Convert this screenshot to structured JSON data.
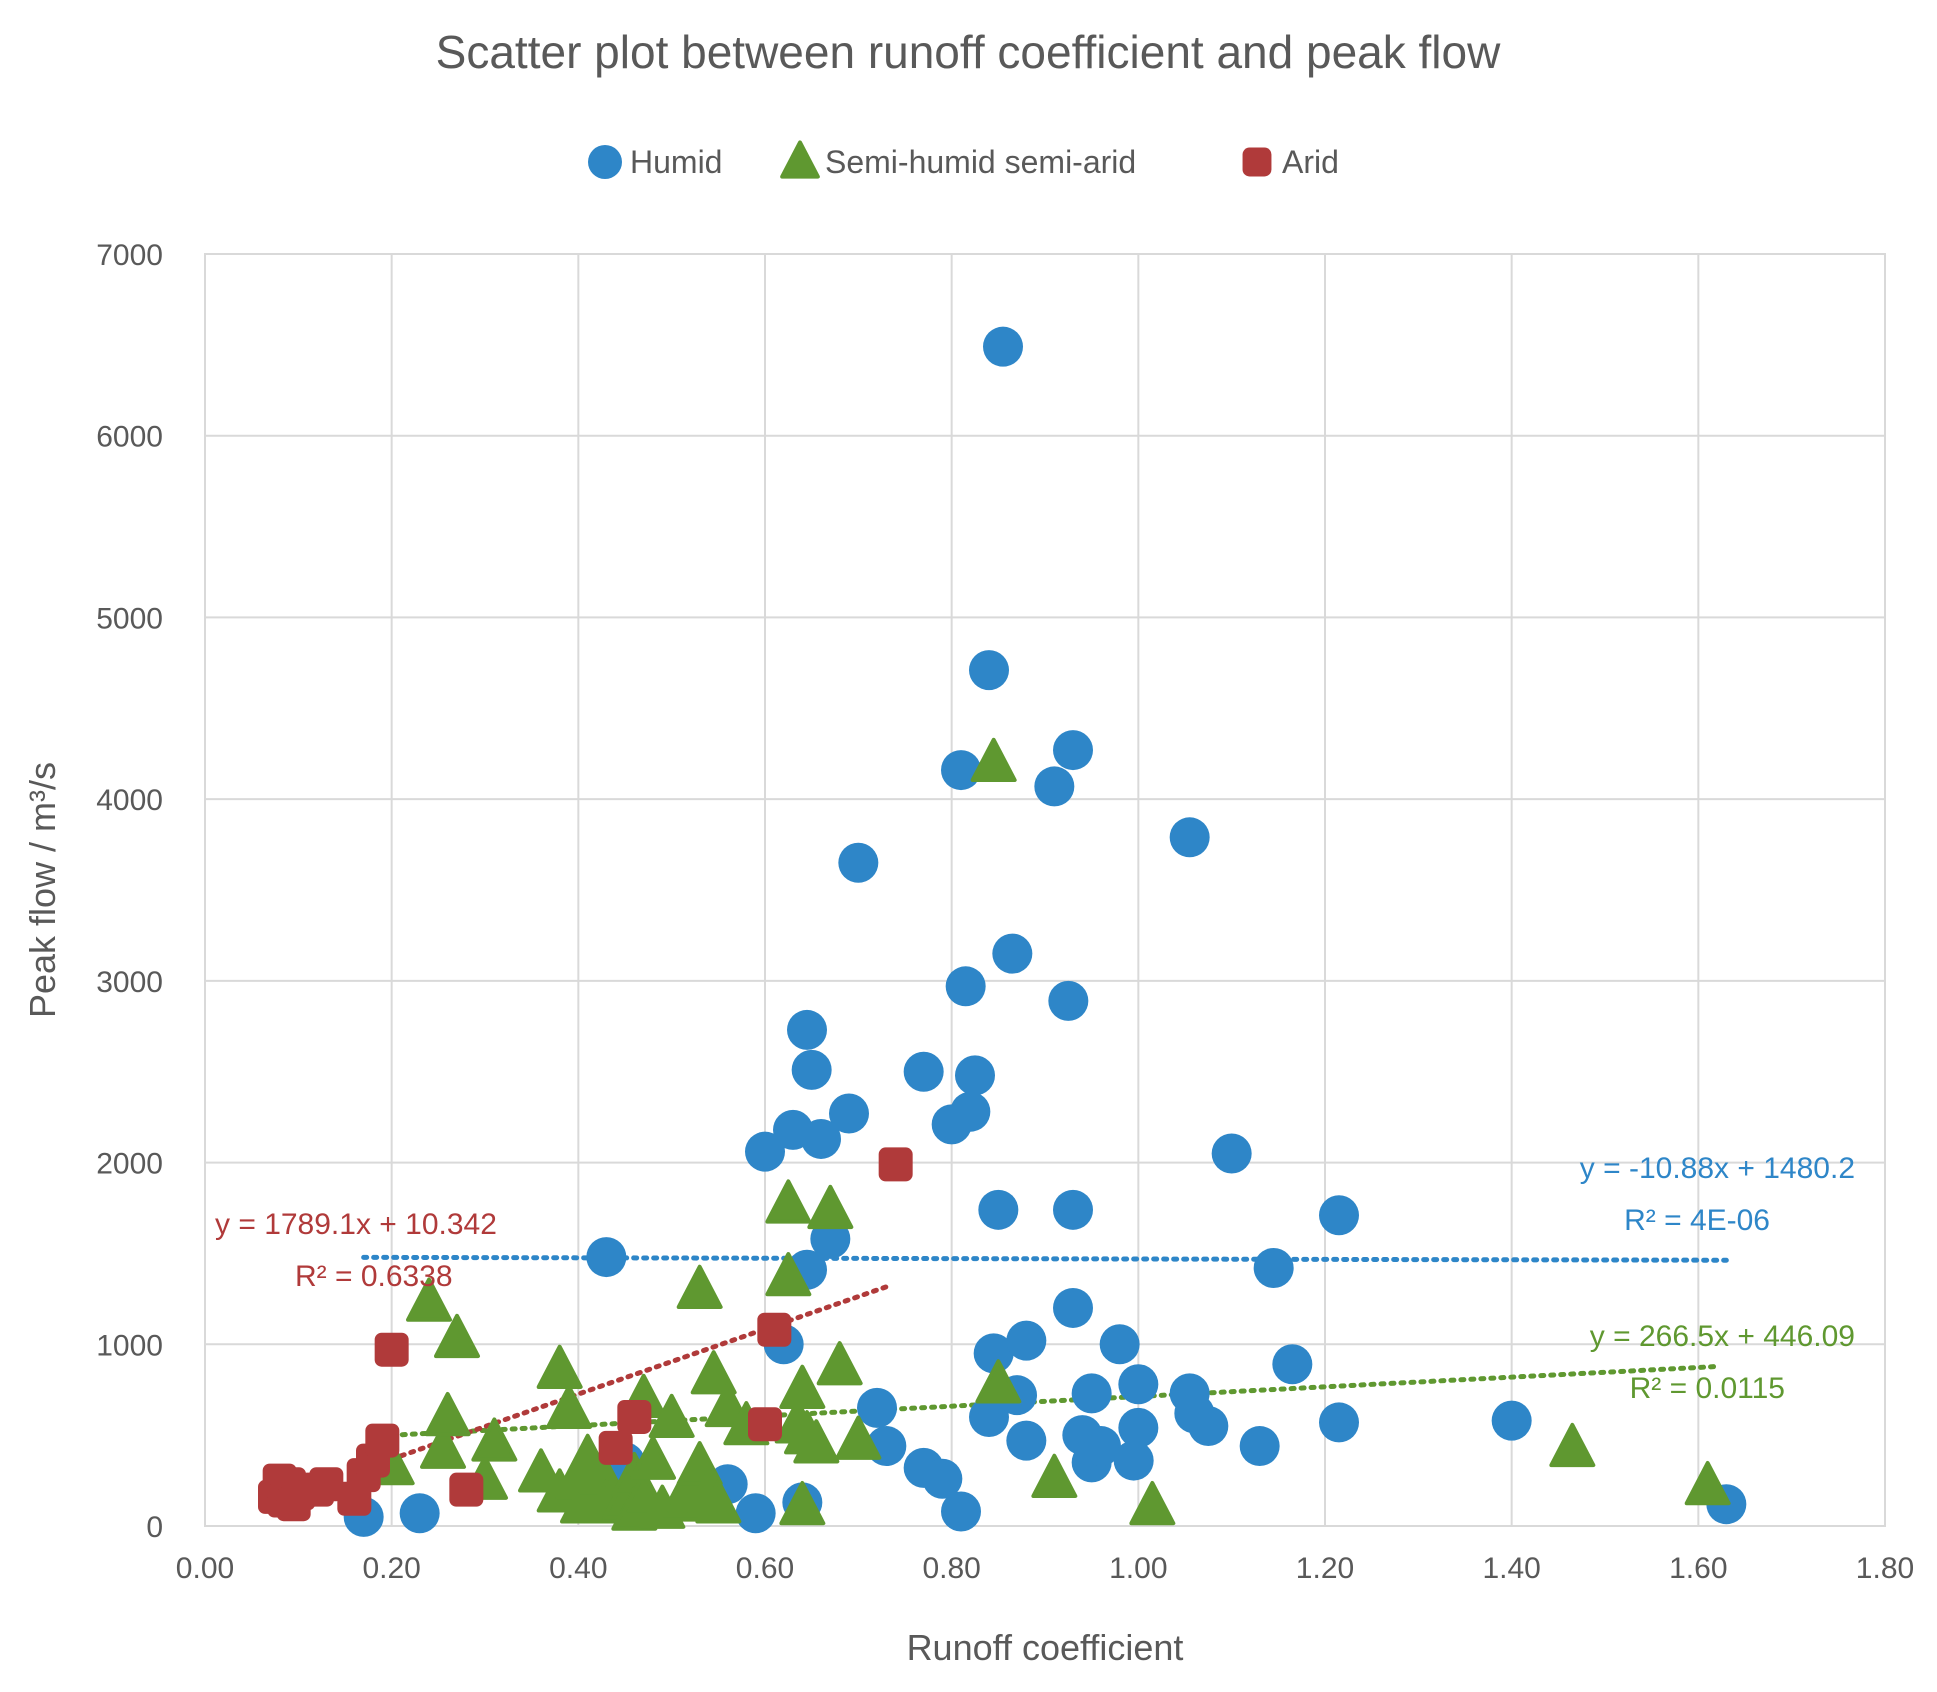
{
  "chart_data": {
    "type": "scatter",
    "title": "Scatter plot between runoff coefficient and peak flow",
    "xlabel": "Runoff coefficient",
    "ylabel": "Peak flow / m³/s",
    "xlim": [
      0,
      1.8
    ],
    "ylim": [
      0,
      7000
    ],
    "x_ticks": [
      "0.00",
      "0.20",
      "0.40",
      "0.60",
      "0.80",
      "1.00",
      "1.20",
      "1.40",
      "1.60",
      "1.80"
    ],
    "y_ticks": [
      "0",
      "1000",
      "2000",
      "3000",
      "4000",
      "5000",
      "6000",
      "7000"
    ],
    "grid": true,
    "legend_position": "top",
    "series": [
      {
        "name": "Humid",
        "color": "#2E86C8",
        "marker": "circle",
        "points": [
          [
            0.17,
            50
          ],
          [
            0.23,
            70
          ],
          [
            0.43,
            1480
          ],
          [
            0.45,
            350
          ],
          [
            0.56,
            230
          ],
          [
            0.59,
            70
          ],
          [
            0.6,
            2060
          ],
          [
            0.62,
            1000
          ],
          [
            0.63,
            2180
          ],
          [
            0.64,
            130
          ],
          [
            0.645,
            2730
          ],
          [
            0.645,
            1410
          ],
          [
            0.65,
            2510
          ],
          [
            0.66,
            2130
          ],
          [
            0.67,
            1580
          ],
          [
            0.69,
            2270
          ],
          [
            0.7,
            3650
          ],
          [
            0.72,
            650
          ],
          [
            0.73,
            440
          ],
          [
            0.77,
            2500
          ],
          [
            0.77,
            320
          ],
          [
            0.79,
            260
          ],
          [
            0.8,
            2210
          ],
          [
            0.81,
            4160
          ],
          [
            0.81,
            80
          ],
          [
            0.815,
            2970
          ],
          [
            0.82,
            2280
          ],
          [
            0.825,
            2480
          ],
          [
            0.84,
            4710
          ],
          [
            0.84,
            600
          ],
          [
            0.845,
            950
          ],
          [
            0.85,
            1740
          ],
          [
            0.855,
            6490
          ],
          [
            0.865,
            3150
          ],
          [
            0.87,
            720
          ],
          [
            0.88,
            1020
          ],
          [
            0.88,
            470
          ],
          [
            0.91,
            4070
          ],
          [
            0.925,
            2890
          ],
          [
            0.93,
            4270
          ],
          [
            0.93,
            1200
          ],
          [
            0.93,
            1740
          ],
          [
            0.94,
            500
          ],
          [
            0.95,
            730
          ],
          [
            0.95,
            350
          ],
          [
            0.96,
            440
          ],
          [
            0.98,
            1000
          ],
          [
            1.0,
            780
          ],
          [
            1.0,
            540
          ],
          [
            0.995,
            360
          ],
          [
            1.055,
            3790
          ],
          [
            1.055,
            730
          ],
          [
            1.06,
            620
          ],
          [
            1.075,
            550
          ],
          [
            1.1,
            2050
          ],
          [
            1.13,
            440
          ],
          [
            1.145,
            1420
          ],
          [
            1.165,
            890
          ],
          [
            1.215,
            1710
          ],
          [
            1.215,
            570
          ],
          [
            1.4,
            580
          ],
          [
            1.63,
            120
          ]
        ],
        "trendline": {
          "slope": -10.88,
          "intercept": 1480.2,
          "x_range": [
            0.17,
            1.63
          ]
        },
        "equation": "y = -10.88x + 1480.2",
        "r2": "R² = 4E-06"
      },
      {
        "name": "Semi-humid semi-arid",
        "color": "#5F9830",
        "marker": "triangle",
        "points": [
          [
            0.2,
            330
          ],
          [
            0.24,
            1230
          ],
          [
            0.255,
            420
          ],
          [
            0.26,
            600
          ],
          [
            0.27,
            1030
          ],
          [
            0.3,
            250
          ],
          [
            0.31,
            460
          ],
          [
            0.36,
            290
          ],
          [
            0.38,
            860
          ],
          [
            0.38,
            180
          ],
          [
            0.39,
            640
          ],
          [
            0.4,
            250
          ],
          [
            0.405,
            120
          ],
          [
            0.41,
            370
          ],
          [
            0.42,
            180
          ],
          [
            0.425,
            280
          ],
          [
            0.43,
            120
          ],
          [
            0.45,
            140
          ],
          [
            0.46,
            270
          ],
          [
            0.46,
            80
          ],
          [
            0.47,
            160
          ],
          [
            0.47,
            700
          ],
          [
            0.48,
            360
          ],
          [
            0.49,
            90
          ],
          [
            0.5,
            590
          ],
          [
            0.51,
            130
          ],
          [
            0.52,
            180
          ],
          [
            0.53,
            1300
          ],
          [
            0.53,
            330
          ],
          [
            0.54,
            180
          ],
          [
            0.545,
            830
          ],
          [
            0.55,
            120
          ],
          [
            0.56,
            650
          ],
          [
            0.58,
            550
          ],
          [
            0.625,
            1770
          ],
          [
            0.625,
            1370
          ],
          [
            0.635,
            560
          ],
          [
            0.64,
            110
          ],
          [
            0.64,
            750
          ],
          [
            0.645,
            500
          ],
          [
            0.655,
            450
          ],
          [
            0.67,
            1740
          ],
          [
            0.68,
            880
          ],
          [
            0.7,
            470
          ],
          [
            0.845,
            4200
          ],
          [
            0.85,
            780
          ],
          [
            0.91,
            260
          ],
          [
            1.015,
            110
          ],
          [
            1.465,
            430
          ],
          [
            1.61,
            220
          ]
        ],
        "trendline": {
          "slope": 266.5,
          "intercept": 446.09,
          "x_range": [
            0.19,
            1.62
          ]
        },
        "equation": "y = 266.5x + 446.09",
        "r2": "R² = 0.0115"
      },
      {
        "name": "Arid",
        "color": "#B03A3A",
        "marker": "square",
        "points": [
          [
            0.075,
            160
          ],
          [
            0.08,
            250
          ],
          [
            0.085,
            140
          ],
          [
            0.09,
            230
          ],
          [
            0.095,
            120
          ],
          [
            0.1,
            180
          ],
          [
            0.12,
            200
          ],
          [
            0.13,
            230
          ],
          [
            0.16,
            150
          ],
          [
            0.17,
            280
          ],
          [
            0.18,
            360
          ],
          [
            0.19,
            470
          ],
          [
            0.2,
            970
          ],
          [
            0.28,
            200
          ],
          [
            0.44,
            430
          ],
          [
            0.46,
            600
          ],
          [
            0.6,
            560
          ],
          [
            0.61,
            1080
          ],
          [
            0.74,
            1990
          ]
        ],
        "trendline": {
          "slope": 1789.1,
          "intercept": 10.342,
          "x_range": [
            0.18,
            0.73
          ]
        },
        "equation": "y = 1789.1x + 10.342",
        "r2": "R² = 0.6338"
      }
    ]
  }
}
